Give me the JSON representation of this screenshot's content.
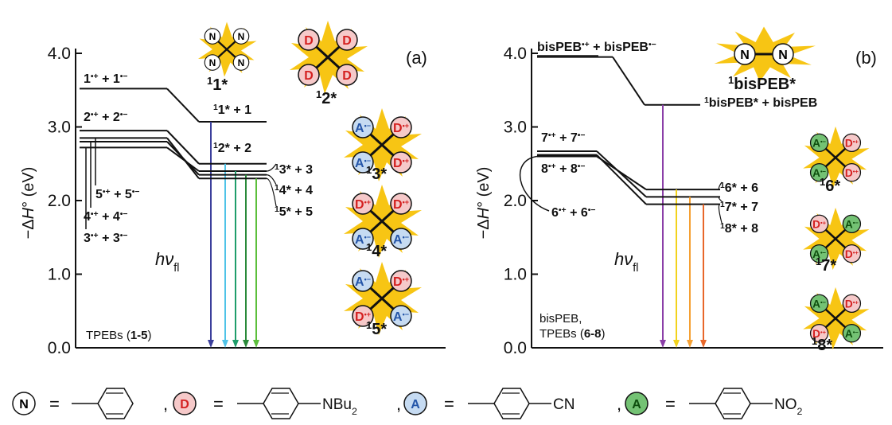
{
  "panels": [
    {
      "tag": "(a)",
      "y_label": [
        {
          "t": "−Δ"
        },
        {
          "t": "H",
          "italic": true
        },
        {
          "t": "° (eV)"
        }
      ],
      "ylim": [
        0,
        4
      ],
      "yticks": [
        {
          "value": 0,
          "label": "0.0"
        },
        {
          "value": 1,
          "label": "1.0"
        },
        {
          "value": 2,
          "label": "2.0"
        },
        {
          "value": 3,
          "label": "3.0"
        },
        {
          "value": 4,
          "label": "4.0"
        }
      ],
      "emission_label": [
        {
          "t": "hν",
          "italic": true
        },
        {
          "t": "fl",
          "sub": true
        }
      ],
      "note": [
        {
          "t": "TPEBs ("
        },
        {
          "t": "1-5",
          "bold": true
        },
        {
          "t": ")"
        }
      ],
      "levels": [
        {
          "ion_pair": {
            "energy": 3.52,
            "label": [
              {
                "t": "1"
              },
              {
                "t": "•+",
                "sup": true
              },
              {
                "t": " + 1"
              },
              {
                "t": "•−",
                "sup": true
              }
            ]
          },
          "excited": {
            "energy": 3.07,
            "label": [
              {
                "t": "1",
                "sup": true
              },
              {
                "t": "1* + 1"
              }
            ]
          },
          "emission_color": "#3b3f9c"
        },
        {
          "ion_pair": {
            "energy": 2.95,
            "label": [
              {
                "t": "2"
              },
              {
                "t": "•+",
                "sup": true
              },
              {
                "t": " + 2"
              },
              {
                "t": "•−",
                "sup": true
              }
            ]
          },
          "excited": {
            "energy": 2.5,
            "label": [
              {
                "t": "1",
                "sup": true
              },
              {
                "t": "2* + 2"
              }
            ]
          },
          "emission_color": "#4fc3e8"
        },
        {
          "ion_pair": {
            "energy": 2.72,
            "label": [
              {
                "t": "3"
              },
              {
                "t": "•+",
                "sup": true
              },
              {
                "t": " + 3"
              },
              {
                "t": "•−",
                "sup": true
              }
            ]
          },
          "excited": {
            "energy": 2.4,
            "label": [
              {
                "t": "1",
                "sup": true
              },
              {
                "t": "3* + 3"
              }
            ]
          },
          "emission_color": "#1f9d6a"
        },
        {
          "ion_pair": {
            "energy": 2.8,
            "label": [
              {
                "t": "4"
              },
              {
                "t": "•+",
                "sup": true
              },
              {
                "t": " + 4"
              },
              {
                "t": "•−",
                "sup": true
              }
            ]
          },
          "excited": {
            "energy": 2.35,
            "label": [
              {
                "t": "1",
                "sup": true
              },
              {
                "t": "4* + 4"
              }
            ]
          },
          "emission_color": "#2a8a3a"
        },
        {
          "ion_pair": {
            "energy": 2.85,
            "label": [
              {
                "t": "5"
              },
              {
                "t": "•+",
                "sup": true
              },
              {
                "t": " + 5"
              },
              {
                "t": "•−",
                "sup": true
              }
            ]
          },
          "excited": {
            "energy": 2.3,
            "label": [
              {
                "t": "1",
                "sup": true
              },
              {
                "t": "5* + 5"
              }
            ]
          },
          "emission_color": "#5cbf3c"
        }
      ],
      "molecules": [
        {
          "label": [
            {
              "t": "1",
              "sup": true
            },
            {
              "t": "1*",
              "bold": true
            }
          ],
          "groups": [
            {
              "letter": "N",
              "fill": "#ffffff",
              "ink": "#000000"
            },
            {
              "letter": "N",
              "fill": "#ffffff",
              "ink": "#000000"
            },
            {
              "letter": "N",
              "fill": "#ffffff",
              "ink": "#000000"
            },
            {
              "letter": "N",
              "fill": "#ffffff",
              "ink": "#000000"
            }
          ]
        },
        {
          "label": [
            {
              "t": "1",
              "sup": true
            },
            {
              "t": "2*",
              "bold": true
            }
          ],
          "groups": [
            {
              "letter": "D",
              "fill": "#f6c9c9",
              "ink": "#d42020"
            },
            {
              "letter": "D",
              "fill": "#f6c9c9",
              "ink": "#d42020"
            },
            {
              "letter": "D",
              "fill": "#f6c9c9",
              "ink": "#d42020"
            },
            {
              "letter": "D",
              "fill": "#f6c9c9",
              "ink": "#d42020"
            }
          ]
        },
        {
          "label": [
            {
              "t": "1",
              "sup": true
            },
            {
              "t": "3*",
              "bold": true
            }
          ],
          "groups": [
            {
              "letter": "A",
              "charge": "•−",
              "fill": "#c6dbf2",
              "ink": "#2455a8"
            },
            {
              "letter": "D",
              "charge": "•+",
              "fill": "#f6c9c9",
              "ink": "#d42020"
            },
            {
              "letter": "A",
              "charge": "•−",
              "fill": "#c6dbf2",
              "ink": "#2455a8"
            },
            {
              "letter": "D",
              "charge": "•+",
              "fill": "#f6c9c9",
              "ink": "#d42020"
            }
          ]
        },
        {
          "label": [
            {
              "t": "1",
              "sup": true
            },
            {
              "t": "4*",
              "bold": true
            }
          ],
          "groups": [
            {
              "letter": "D",
              "charge": "•+",
              "fill": "#f6c9c9",
              "ink": "#d42020"
            },
            {
              "letter": "D",
              "charge": "•+",
              "fill": "#f6c9c9",
              "ink": "#d42020"
            },
            {
              "letter": "A",
              "charge": "•−",
              "fill": "#c6dbf2",
              "ink": "#2455a8"
            },
            {
              "letter": "A",
              "charge": "•−",
              "fill": "#c6dbf2",
              "ink": "#2455a8"
            }
          ]
        },
        {
          "label": [
            {
              "t": "1",
              "sup": true
            },
            {
              "t": "5*",
              "bold": true
            }
          ],
          "groups": [
            {
              "letter": "A",
              "charge": "•−",
              "fill": "#c6dbf2",
              "ink": "#2455a8"
            },
            {
              "letter": "D",
              "charge": "•+",
              "fill": "#f6c9c9",
              "ink": "#d42020"
            },
            {
              "letter": "D",
              "charge": "•+",
              "fill": "#f6c9c9",
              "ink": "#d42020"
            },
            {
              "letter": "A",
              "charge": "•−",
              "fill": "#c6dbf2",
              "ink": "#2455a8"
            }
          ]
        }
      ]
    },
    {
      "tag": "(b)",
      "y_label": [
        {
          "t": "−Δ"
        },
        {
          "t": "H",
          "italic": true
        },
        {
          "t": "° (eV)"
        }
      ],
      "ylim": [
        0,
        4
      ],
      "yticks": [
        {
          "value": 0,
          "label": "0.0"
        },
        {
          "value": 1,
          "label": "1.0"
        },
        {
          "value": 2,
          "label": "2.0"
        },
        {
          "value": 3,
          "label": "3.0"
        },
        {
          "value": 4,
          "label": "4.0"
        }
      ],
      "emission_label": [
        {
          "t": "hν",
          "italic": true
        },
        {
          "t": "fl",
          "sub": true
        }
      ],
      "note": [
        {
          "t": "bisPEB,"
        },
        {
          "t": "TPEBs (",
          "newline": true
        },
        {
          "t": "6-8",
          "bold": true
        },
        {
          "t": ")"
        }
      ],
      "levels": [
        {
          "ion_pair": {
            "energy": 3.95,
            "label": [
              {
                "t": "bisPEB"
              },
              {
                "t": "•+",
                "sup": true
              },
              {
                "t": " + bisPEB"
              },
              {
                "t": "•−",
                "sup": true
              }
            ]
          },
          "excited": {
            "energy": 3.3,
            "label": [
              {
                "t": "1",
                "sup": true
              },
              {
                "t": "bisPEB* + bisPEB"
              }
            ]
          },
          "emission_color": "#8b3fa8"
        },
        {
          "ion_pair": {
            "energy": 2.6,
            "label": [
              {
                "t": "6"
              },
              {
                "t": "•+",
                "sup": true
              },
              {
                "t": " + 6"
              },
              {
                "t": "•−",
                "sup": true
              }
            ]
          },
          "excited": {
            "energy": 2.15,
            "label": [
              {
                "t": "1",
                "sup": true
              },
              {
                "t": "6* + 6"
              }
            ]
          },
          "emission_color": "#f2d21c"
        },
        {
          "ion_pair": {
            "energy": 2.67,
            "label": [
              {
                "t": "7"
              },
              {
                "t": "•+",
                "sup": true
              },
              {
                "t": " + 7"
              },
              {
                "t": "•−",
                "sup": true
              }
            ]
          },
          "excited": {
            "energy": 2.05,
            "label": [
              {
                "t": "1",
                "sup": true
              },
              {
                "t": "7* + 7"
              }
            ]
          },
          "emission_color": "#f5a033"
        },
        {
          "ion_pair": {
            "energy": 2.62,
            "label": [
              {
                "t": "8"
              },
              {
                "t": "•+",
                "sup": true
              },
              {
                "t": " + 8"
              },
              {
                "t": "•−",
                "sup": true
              }
            ]
          },
          "excited": {
            "energy": 1.95,
            "label": [
              {
                "t": "1",
                "sup": true
              },
              {
                "t": "8* + 8"
              }
            ]
          },
          "emission_color": "#e8672a"
        }
      ],
      "molecules": [
        {
          "label": [
            {
              "t": "1",
              "sup": true
            },
            {
              "t": "bisPEB*"
            }
          ],
          "linear": true,
          "groups": [
            {
              "letter": "N",
              "fill": "#ffffff",
              "ink": "#000000"
            },
            {
              "letter": "N",
              "fill": "#ffffff",
              "ink": "#000000"
            }
          ]
        },
        {
          "label": [
            {
              "t": "1",
              "sup": true
            },
            {
              "t": "6*",
              "bold": true
            }
          ],
          "groups": [
            {
              "letter": "A",
              "charge": "•−",
              "fill": "#74c274",
              "ink": "#0d4d0d"
            },
            {
              "letter": "D",
              "charge": "•+",
              "fill": "#f6c9c9",
              "ink": "#d42020"
            },
            {
              "letter": "A",
              "charge": "•−",
              "fill": "#74c274",
              "ink": "#0d4d0d"
            },
            {
              "letter": "D",
              "charge": "•+",
              "fill": "#f6c9c9",
              "ink": "#d42020"
            }
          ]
        },
        {
          "label": [
            {
              "t": "1",
              "sup": true
            },
            {
              "t": "7*",
              "bold": true
            }
          ],
          "groups": [
            {
              "letter": "D",
              "charge": "•+",
              "fill": "#f6c9c9",
              "ink": "#d42020"
            },
            {
              "letter": "A",
              "charge": "•−",
              "fill": "#74c274",
              "ink": "#0d4d0d"
            },
            {
              "letter": "A",
              "charge": "•−",
              "fill": "#74c274",
              "ink": "#0d4d0d"
            },
            {
              "letter": "D",
              "charge": "•+",
              "fill": "#f6c9c9",
              "ink": "#d42020"
            }
          ]
        },
        {
          "label": [
            {
              "t": "1",
              "sup": true
            },
            {
              "t": "8*",
              "bold": true
            }
          ],
          "groups": [
            {
              "letter": "A",
              "charge": "•−",
              "fill": "#74c274",
              "ink": "#0d4d0d"
            },
            {
              "letter": "D",
              "charge": "•+",
              "fill": "#f6c9c9",
              "ink": "#d42020"
            },
            {
              "letter": "D",
              "charge": "•+",
              "fill": "#f6c9c9",
              "ink": "#d42020"
            },
            {
              "letter": "A",
              "charge": "•−",
              "fill": "#74c274",
              "ink": "#0d4d0d"
            }
          ]
        }
      ]
    }
  ],
  "legend": {
    "equals": "=",
    "separator": ",",
    "items": [
      {
        "letter": "N",
        "fill": "#ffffff",
        "ink": "#000000"
      },
      {
        "letter": "D",
        "fill": "#f6c9c9",
        "ink": "#d42020",
        "substituent": [
          {
            "t": "NBu"
          },
          {
            "t": "2",
            "sub": true
          }
        ]
      },
      {
        "letter": "A",
        "fill": "#c6dbf2",
        "ink": "#2455a8",
        "substituent": [
          {
            "t": "CN"
          }
        ]
      },
      {
        "letter": "A",
        "fill": "#74c274",
        "ink": "#0d4d0d",
        "substituent": [
          {
            "t": "NO"
          },
          {
            "t": "2",
            "sub": true
          }
        ]
      }
    ]
  }
}
